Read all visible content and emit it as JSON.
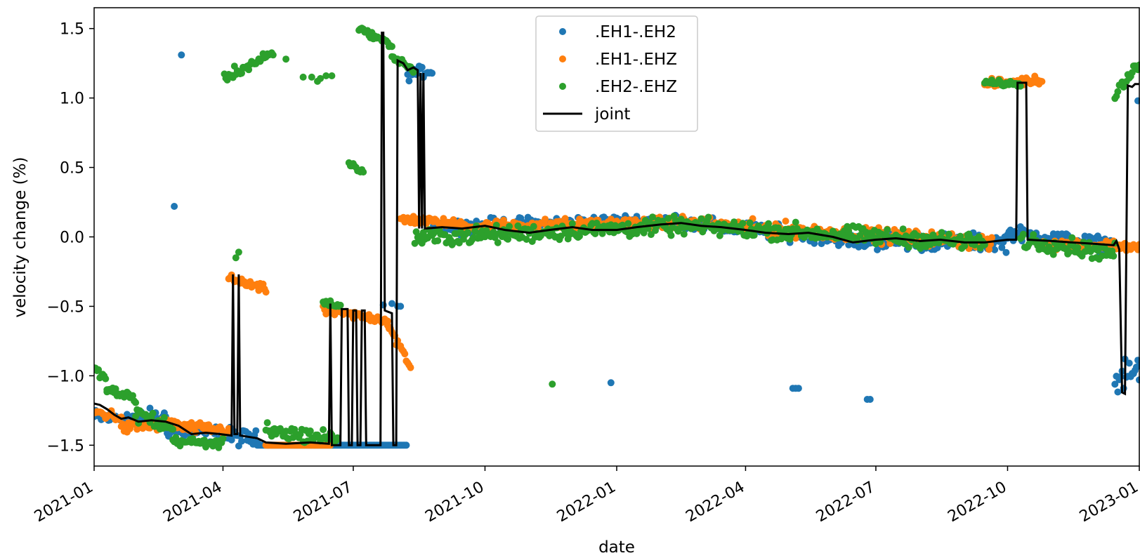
{
  "chart_data": {
    "type": "scatter",
    "title": "",
    "xlabel": "date",
    "ylabel": "velocity change (%)",
    "xlim": [
      "2021-01-01",
      "2023-01-01"
    ],
    "ylim": [
      -1.65,
      1.65
    ],
    "x_ticks": [
      "2021-01",
      "2021-04",
      "2021-07",
      "2021-10",
      "2022-01",
      "2022-04",
      "2022-07",
      "2022-10",
      "2023-01"
    ],
    "y_ticks": [
      {
        "value": 1.5,
        "label": "1.5"
      },
      {
        "value": 1.0,
        "label": "1.0"
      },
      {
        "value": 0.5,
        "label": "0.5"
      },
      {
        "value": 0.0,
        "label": "0.0"
      },
      {
        "value": -0.5,
        "label": "−0.5"
      },
      {
        "value": -1.0,
        "label": "−1.0"
      },
      {
        "value": -1.5,
        "label": "−1.5"
      }
    ],
    "grid": false,
    "legend": {
      "placement": "top-center"
    },
    "series": [
      {
        "name": ".EH1-.EH2",
        "kind": "scatter",
        "color": "#1f77b4",
        "segments": [
          {
            "x_start": "2021-01-01",
            "x_end": "2021-02-20",
            "y_start": -1.3,
            "y_end": -1.3,
            "noise": 0.03
          },
          {
            "x_start": "2021-02-20",
            "x_end": "2021-04-01",
            "y_start": -1.38,
            "y_end": -1.43,
            "noise": 0.03
          },
          {
            "x_start": "2021-04-01",
            "x_end": "2021-04-25",
            "y_start": -1.43,
            "y_end": -1.46,
            "noise": 0.03
          },
          {
            "x_start": "2021-04-25",
            "x_end": "2021-08-07",
            "y_start": -1.5,
            "y_end": -1.5,
            "noise": 0.0
          },
          {
            "x_start": "2021-08-08",
            "x_end": "2021-08-25",
            "y_start": 1.17,
            "y_end": 1.2,
            "noise": 0.02
          },
          {
            "x_start": "2021-08-26",
            "x_end": "2022-02-15",
            "y_start": 0.07,
            "y_end": 0.12,
            "noise": 0.025
          },
          {
            "x_start": "2022-02-15",
            "x_end": "2022-06-15",
            "y_start": 0.1,
            "y_end": -0.02,
            "noise": 0.025
          },
          {
            "x_start": "2022-06-15",
            "x_end": "2022-10-01",
            "y_start": -0.03,
            "y_end": -0.04,
            "noise": 0.03
          },
          {
            "x_start": "2022-10-01",
            "x_end": "2022-12-15",
            "y_start": 0.03,
            "y_end": -0.06,
            "noise": 0.025
          },
          {
            "x_start": "2022-12-15",
            "x_end": "2023-01-01",
            "y_start": -1.05,
            "y_end": -0.95,
            "noise": 0.05
          }
        ],
        "points": [
          {
            "x": "2021-02-26",
            "y": 0.22
          },
          {
            "x": "2021-03-03",
            "y": 1.31
          },
          {
            "x": "2021-07-22",
            "y": -0.49
          },
          {
            "x": "2021-07-28",
            "y": -0.48
          },
          {
            "x": "2021-08-01",
            "y": -0.5
          },
          {
            "x": "2021-08-03",
            "y": -0.5
          },
          {
            "x": "2021-12-28",
            "y": -1.05
          },
          {
            "x": "2022-05-04",
            "y": -1.09
          },
          {
            "x": "2022-05-06",
            "y": -1.09
          },
          {
            "x": "2022-05-08",
            "y": -1.09
          },
          {
            "x": "2022-06-25",
            "y": -1.17
          },
          {
            "x": "2022-06-27",
            "y": -1.17
          },
          {
            "x": "2022-12-31",
            "y": 0.98
          },
          {
            "x": "2023-01-01",
            "y": -1.03
          }
        ]
      },
      {
        "name": ".EH1-.EHZ",
        "kind": "scatter",
        "color": "#ff7f0e",
        "segments": [
          {
            "x_start": "2021-01-01",
            "x_end": "2021-01-20",
            "y_start": -1.26,
            "y_end": -1.3,
            "noise": 0.02
          },
          {
            "x_start": "2021-01-20",
            "x_end": "2021-02-28",
            "y_start": -1.38,
            "y_end": -1.34,
            "noise": 0.02
          },
          {
            "x_start": "2021-02-28",
            "x_end": "2021-04-05",
            "y_start": -1.37,
            "y_end": -1.39,
            "noise": 0.02
          },
          {
            "x_start": "2021-04-05",
            "x_end": "2021-05-01",
            "y_start": -0.3,
            "y_end": -0.38,
            "noise": 0.015
          },
          {
            "x_start": "2021-05-01",
            "x_end": "2021-06-15",
            "y_start": -1.5,
            "y_end": -1.5,
            "noise": 0.0
          },
          {
            "x_start": "2021-06-10",
            "x_end": "2021-07-25",
            "y_start": -0.53,
            "y_end": -0.6,
            "noise": 0.015
          },
          {
            "x_start": "2021-07-25",
            "x_end": "2021-08-10",
            "y_start": -0.62,
            "y_end": -0.95,
            "noise": 0.02
          },
          {
            "x_start": "2021-08-03",
            "x_end": "2021-09-15",
            "y_start": 0.13,
            "y_end": 0.09,
            "noise": 0.015
          },
          {
            "x_start": "2021-09-15",
            "x_end": "2022-02-15",
            "y_start": 0.08,
            "y_end": 0.1,
            "noise": 0.02
          },
          {
            "x_start": "2022-02-15",
            "x_end": "2022-09-20",
            "y_start": 0.1,
            "y_end": -0.04,
            "noise": 0.025
          },
          {
            "x_start": "2022-09-15",
            "x_end": "2022-10-25",
            "y_start": 1.1,
            "y_end": 1.13,
            "noise": 0.015
          },
          {
            "x_start": "2022-10-25",
            "x_end": "2023-01-01",
            "y_start": -0.05,
            "y_end": -0.07,
            "noise": 0.02
          }
        ],
        "points": []
      },
      {
        "name": ".EH2-.EHZ",
        "kind": "scatter",
        "color": "#2ca02c",
        "segments": [
          {
            "x_start": "2021-01-01",
            "x_end": "2021-01-10",
            "y_start": -0.95,
            "y_end": -1.05,
            "noise": 0.02
          },
          {
            "x_start": "2021-01-10",
            "x_end": "2021-01-30",
            "y_start": -1.1,
            "y_end": -1.17,
            "noise": 0.02
          },
          {
            "x_start": "2021-01-30",
            "x_end": "2021-02-25",
            "y_start": -1.27,
            "y_end": -1.38,
            "noise": 0.03
          },
          {
            "x_start": "2021-02-25",
            "x_end": "2021-04-01",
            "y_start": -1.47,
            "y_end": -1.49,
            "noise": 0.015
          },
          {
            "x_start": "2021-04-02",
            "x_end": "2021-05-05",
            "y_start": 1.15,
            "y_end": 1.31,
            "noise": 0.02
          },
          {
            "x_start": "2021-05-01",
            "x_end": "2021-06-20",
            "y_start": -1.4,
            "y_end": -1.45,
            "noise": 0.03
          },
          {
            "x_start": "2021-06-10",
            "x_end": "2021-06-22",
            "y_start": -0.47,
            "y_end": -0.5,
            "noise": 0.01
          },
          {
            "x_start": "2021-06-28",
            "x_end": "2021-07-08",
            "y_start": 0.53,
            "y_end": 0.47,
            "noise": 0.01
          },
          {
            "x_start": "2021-07-05",
            "x_end": "2021-07-28",
            "y_start": 1.5,
            "y_end": 1.38,
            "noise": 0.01
          },
          {
            "x_start": "2021-07-28",
            "x_end": "2021-08-12",
            "y_start": 1.3,
            "y_end": 1.2,
            "noise": 0.015
          },
          {
            "x_start": "2021-08-13",
            "x_end": "2022-02-15",
            "y_start": -0.01,
            "y_end": 0.08,
            "noise": 0.03
          },
          {
            "x_start": "2022-02-15",
            "x_end": "2022-09-15",
            "y_start": 0.08,
            "y_end": -0.04,
            "noise": 0.03
          },
          {
            "x_start": "2022-09-15",
            "x_end": "2022-10-10",
            "y_start": 1.11,
            "y_end": 1.1,
            "noise": 0.01
          },
          {
            "x_start": "2022-10-10",
            "x_end": "2022-12-15",
            "y_start": -0.02,
            "y_end": -0.12,
            "noise": 0.03
          },
          {
            "x_start": "2022-12-15",
            "x_end": "2023-01-01",
            "y_start": 1.02,
            "y_end": 1.25,
            "noise": 0.02
          }
        ],
        "points": [
          {
            "x": "2021-04-10",
            "y": -0.15
          },
          {
            "x": "2021-04-12",
            "y": -0.11
          },
          {
            "x": "2021-05-01",
            "y": 1.3
          },
          {
            "x": "2021-05-06",
            "y": 1.31
          },
          {
            "x": "2021-05-15",
            "y": 1.28
          },
          {
            "x": "2021-05-27",
            "y": 1.15
          },
          {
            "x": "2021-06-02",
            "y": 1.15
          },
          {
            "x": "2021-06-06",
            "y": 1.12
          },
          {
            "x": "2021-06-08",
            "y": 1.14
          },
          {
            "x": "2021-06-12",
            "y": 1.16
          },
          {
            "x": "2021-06-16",
            "y": 1.16
          },
          {
            "x": "2021-11-17",
            "y": -1.06
          }
        ]
      },
      {
        "name": "joint",
        "kind": "line",
        "color": "#000000",
        "points": [
          [
            "2021-01-01",
            -1.2
          ],
          [
            "2021-01-05",
            -1.21
          ],
          [
            "2021-01-10",
            -1.24
          ],
          [
            "2021-01-15",
            -1.28
          ],
          [
            "2021-01-20",
            -1.31
          ],
          [
            "2021-01-25",
            -1.3
          ],
          [
            "2021-02-01",
            -1.33
          ],
          [
            "2021-02-10",
            -1.32
          ],
          [
            "2021-02-20",
            -1.33
          ],
          [
            "2021-03-01",
            -1.36
          ],
          [
            "2021-03-10",
            -1.42
          ],
          [
            "2021-03-20",
            -1.41
          ],
          [
            "2021-03-30",
            -1.42
          ],
          [
            "2021-04-07",
            -1.43
          ],
          [
            "2021-04-08",
            -0.27
          ],
          [
            "2021-04-09",
            -1.42
          ],
          [
            "2021-04-11",
            -1.42
          ],
          [
            "2021-04-12",
            -0.27
          ],
          [
            "2021-04-13",
            -1.43
          ],
          [
            "2021-04-25",
            -1.45
          ],
          [
            "2021-05-01",
            -1.48
          ],
          [
            "2021-05-15",
            -1.49
          ],
          [
            "2021-06-01",
            -1.48
          ],
          [
            "2021-06-14",
            -1.49
          ],
          [
            "2021-06-15",
            -0.48
          ],
          [
            "2021-06-16",
            -1.5
          ],
          [
            "2021-06-22",
            -1.5
          ],
          [
            "2021-06-23",
            -0.52
          ],
          [
            "2021-06-27",
            -0.52
          ],
          [
            "2021-06-28",
            -1.5
          ],
          [
            "2021-06-30",
            -1.5
          ],
          [
            "2021-07-01",
            -0.53
          ],
          [
            "2021-07-03",
            -0.53
          ],
          [
            "2021-07-04",
            -1.5
          ],
          [
            "2021-07-06",
            -1.5
          ],
          [
            "2021-07-07",
            -0.53
          ],
          [
            "2021-07-09",
            -0.53
          ],
          [
            "2021-07-10",
            -1.5
          ],
          [
            "2021-07-20",
            -1.5
          ],
          [
            "2021-07-21",
            1.47
          ],
          [
            "2021-07-22",
            1.47
          ],
          [
            "2021-07-23",
            -0.53
          ],
          [
            "2021-07-28",
            -0.55
          ],
          [
            "2021-07-29",
            -1.5
          ],
          [
            "2021-07-31",
            -1.5
          ],
          [
            "2021-08-01",
            1.27
          ],
          [
            "2021-08-05",
            1.25
          ],
          [
            "2021-08-08",
            1.2
          ],
          [
            "2021-08-12",
            1.22
          ],
          [
            "2021-08-15",
            1.2
          ],
          [
            "2021-08-16",
            0.06
          ],
          [
            "2021-08-17",
            1.18
          ],
          [
            "2021-08-18",
            0.06
          ],
          [
            "2021-08-19",
            1.18
          ],
          [
            "2021-08-20",
            0.06
          ],
          [
            "2021-09-01",
            0.07
          ],
          [
            "2021-09-15",
            0.06
          ],
          [
            "2021-10-01",
            0.08
          ],
          [
            "2021-10-15",
            0.05
          ],
          [
            "2021-11-01",
            0.03
          ],
          [
            "2021-11-15",
            0.05
          ],
          [
            "2021-12-01",
            0.07
          ],
          [
            "2021-12-15",
            0.05
          ],
          [
            "2022-01-01",
            0.05
          ],
          [
            "2022-01-15",
            0.07
          ],
          [
            "2022-02-01",
            0.09
          ],
          [
            "2022-02-15",
            0.1
          ],
          [
            "2022-03-01",
            0.08
          ],
          [
            "2022-03-15",
            0.07
          ],
          [
            "2022-04-01",
            0.05
          ],
          [
            "2022-04-15",
            0.03
          ],
          [
            "2022-05-01",
            0.02
          ],
          [
            "2022-05-15",
            0.03
          ],
          [
            "2022-06-01",
            0.0
          ],
          [
            "2022-06-15",
            -0.04
          ],
          [
            "2022-07-01",
            -0.02
          ],
          [
            "2022-07-15",
            -0.01
          ],
          [
            "2022-08-01",
            -0.03
          ],
          [
            "2022-08-15",
            -0.02
          ],
          [
            "2022-09-01",
            -0.04
          ],
          [
            "2022-09-15",
            -0.04
          ],
          [
            "2022-10-01",
            -0.02
          ],
          [
            "2022-10-07",
            -0.02
          ],
          [
            "2022-10-08",
            1.11
          ],
          [
            "2022-10-14",
            1.11
          ],
          [
            "2022-10-15",
            -0.02
          ],
          [
            "2022-11-01",
            -0.03
          ],
          [
            "2022-11-15",
            -0.04
          ],
          [
            "2022-12-01",
            -0.05
          ],
          [
            "2022-12-14",
            -0.06
          ],
          [
            "2022-12-16",
            -0.03
          ],
          [
            "2022-12-18",
            -0.09
          ],
          [
            "2022-12-20",
            -1.12
          ],
          [
            "2022-12-22",
            -1.13
          ],
          [
            "2022-12-24",
            1.09
          ],
          [
            "2022-12-27",
            1.08
          ],
          [
            "2022-12-29",
            1.1
          ],
          [
            "2023-01-01",
            1.1
          ]
        ]
      }
    ]
  }
}
